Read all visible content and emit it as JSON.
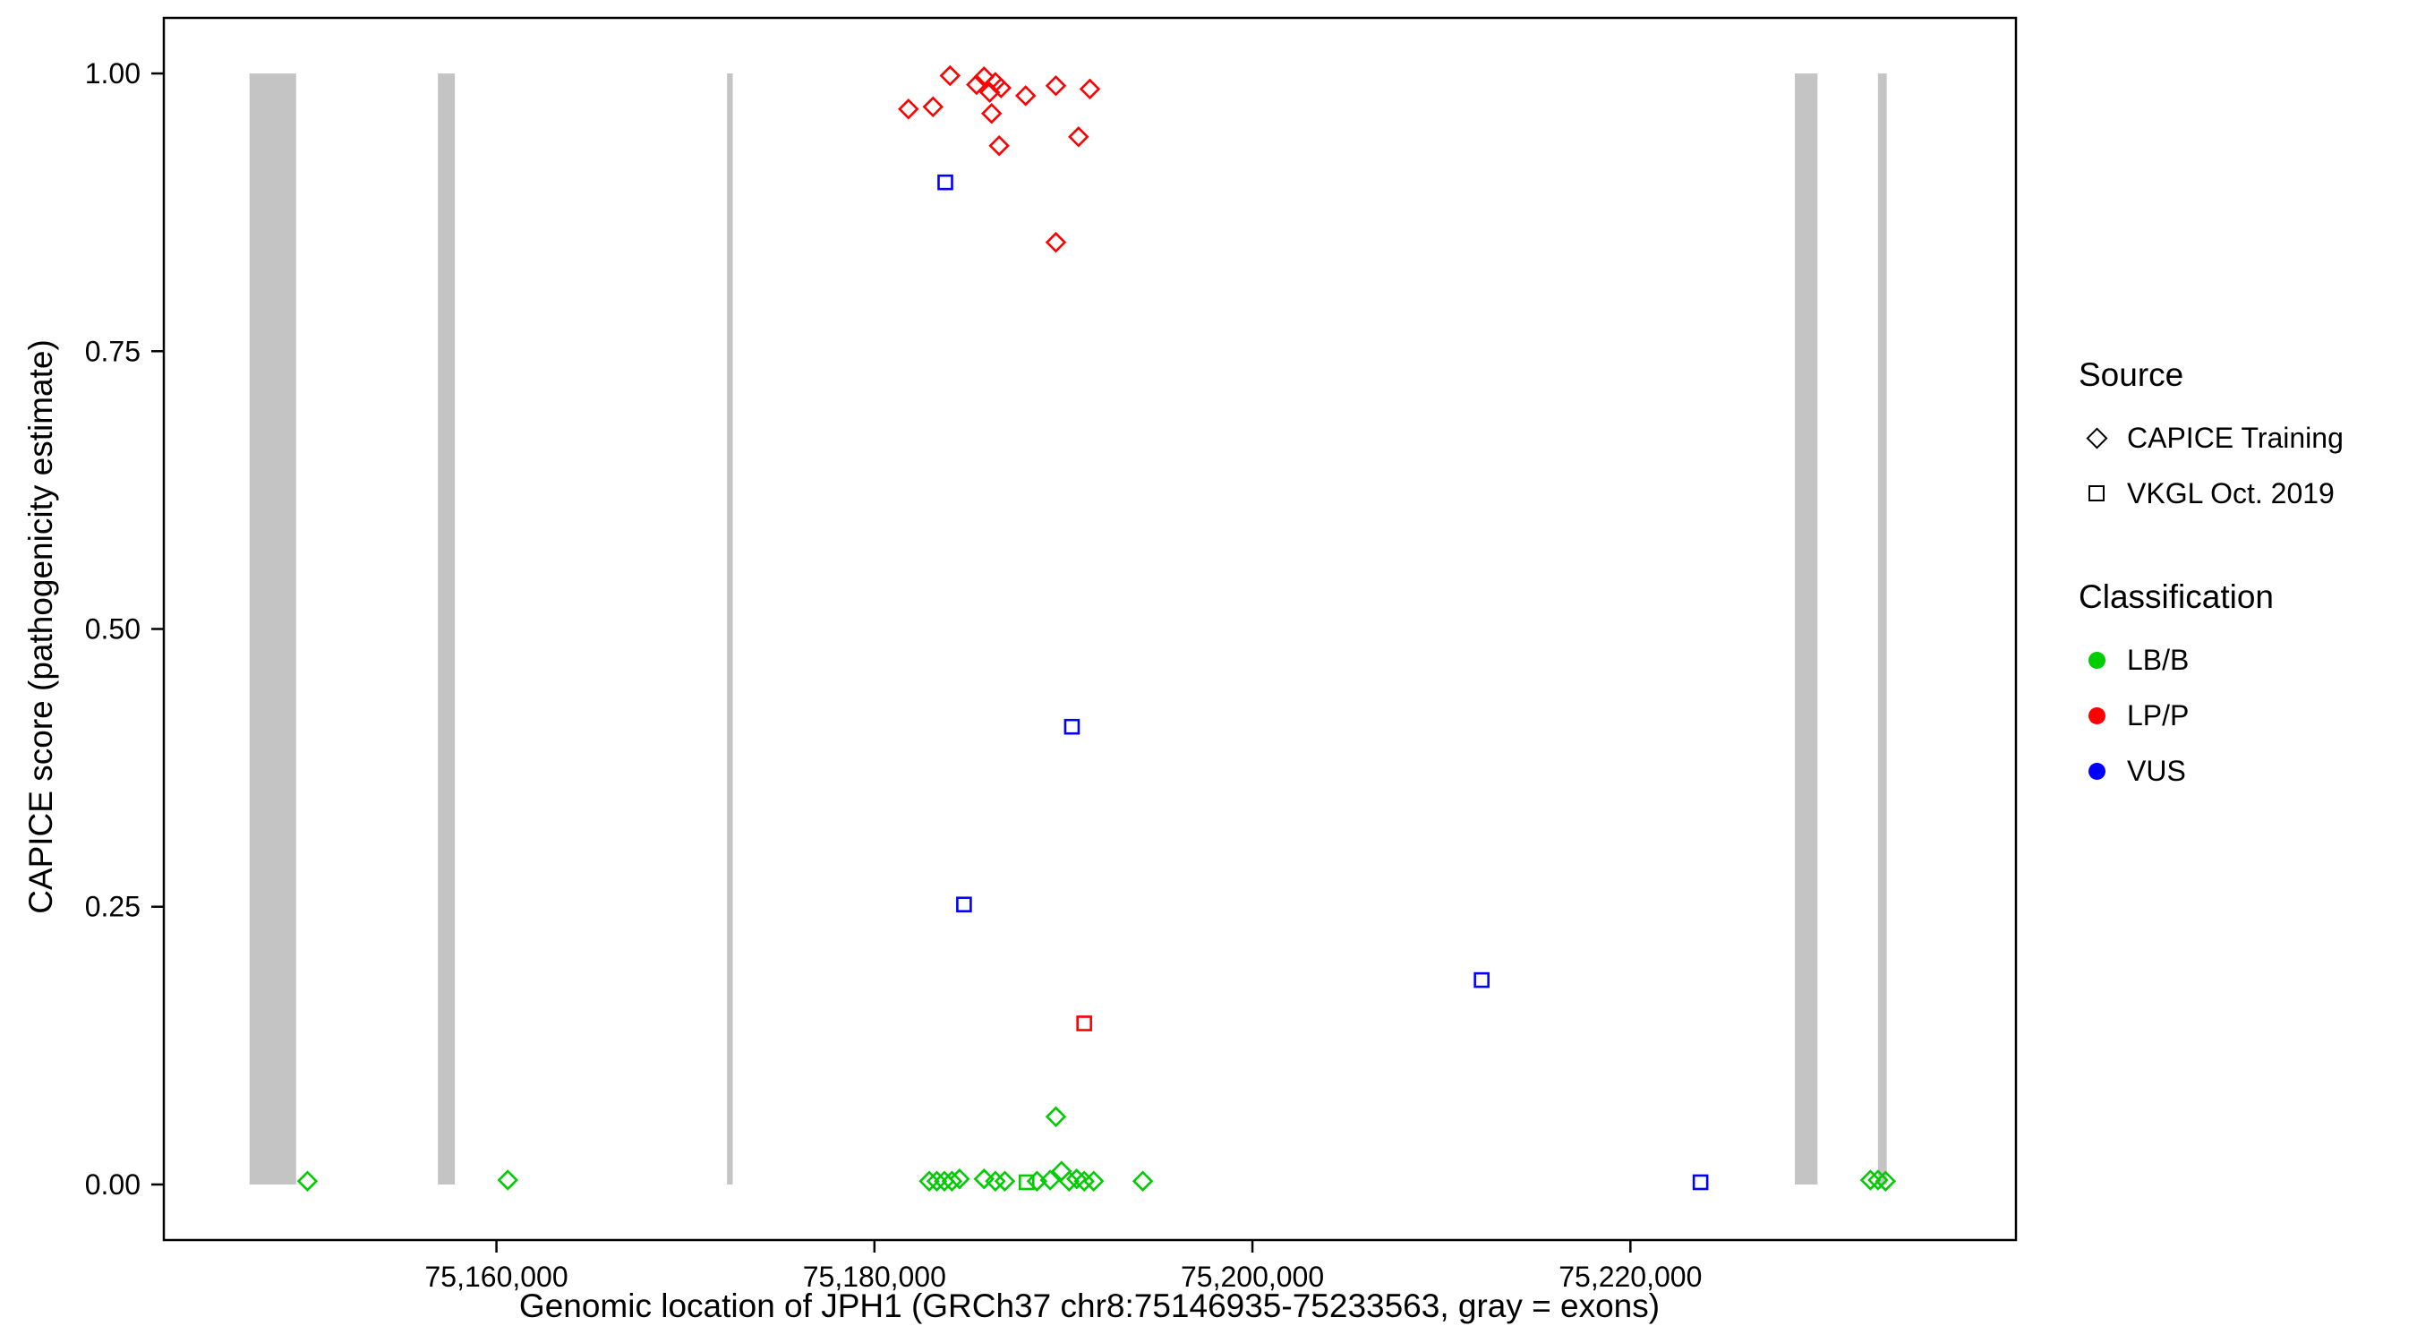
{
  "chart_data": {
    "type": "scatter",
    "title": "",
    "xlabel": "Genomic location of JPH1 (GRCh37 chr8:75146935-75233563, gray = exons)",
    "ylabel": "CAPICE score (pathogenicity estimate)",
    "x_domain": [
      75142400,
      75240400
    ],
    "y_domain": [
      -0.05,
      1.05
    ],
    "x_ticks": [
      {
        "v": 75160000,
        "label": "75,160,000"
      },
      {
        "v": 75180000,
        "label": "75,180,000"
      },
      {
        "v": 75200000,
        "label": "75,200,000"
      },
      {
        "v": 75220000,
        "label": "75,220,000"
      }
    ],
    "y_ticks": [
      {
        "v": 0.0,
        "label": "0.00"
      },
      {
        "v": 0.25,
        "label": "0.25"
      },
      {
        "v": 0.5,
        "label": "0.50"
      },
      {
        "v": 0.75,
        "label": "0.75"
      },
      {
        "v": 1.0,
        "label": "1.00"
      }
    ],
    "grid": false,
    "legend_position": "right",
    "exon_color": "#C4C4C4",
    "exons": [
      [
        75146935,
        75149400
      ],
      [
        75156900,
        75157800
      ],
      [
        75172200,
        75172500
      ],
      [
        75228700,
        75229900
      ],
      [
        75233100,
        75233563
      ]
    ],
    "legend": {
      "source": {
        "title": "Source",
        "items": [
          {
            "label": "CAPICE Training",
            "marker": "diamond"
          },
          {
            "label": "VKGL Oct. 2019",
            "marker": "square"
          }
        ]
      },
      "classification": {
        "title": "Classification",
        "items": [
          {
            "label": "LB/B",
            "color": "#00CC00"
          },
          {
            "label": "LP/P",
            "color": "#FF0000"
          },
          {
            "label": "VUS",
            "color": "#0000FF"
          }
        ]
      }
    },
    "series": [
      {
        "name": "CAPICE Training / LB/B",
        "source": "CAPICE Training",
        "classification": "LB/B",
        "marker": "diamond",
        "color": "#00CC00",
        "points": [
          [
            75150000,
            0.003
          ],
          [
            75160600,
            0.004
          ],
          [
            75182900,
            0.003
          ],
          [
            75183300,
            0.003
          ],
          [
            75183700,
            0.003
          ],
          [
            75184100,
            0.003
          ],
          [
            75184500,
            0.005
          ],
          [
            75185800,
            0.005
          ],
          [
            75186400,
            0.003
          ],
          [
            75186900,
            0.003
          ],
          [
            75188600,
            0.003
          ],
          [
            75189300,
            0.004
          ],
          [
            75189600,
            0.061
          ],
          [
            75189900,
            0.012
          ],
          [
            75190300,
            0.003
          ],
          [
            75190700,
            0.005
          ],
          [
            75191100,
            0.003
          ],
          [
            75191600,
            0.003
          ],
          [
            75194200,
            0.003
          ],
          [
            75232700,
            0.004
          ],
          [
            75233100,
            0.004
          ],
          [
            75233500,
            0.003
          ]
        ]
      },
      {
        "name": "CAPICE Training / LP/P",
        "source": "CAPICE Training",
        "classification": "LP/P",
        "marker": "diamond",
        "color": "#FF0000",
        "points": [
          [
            75181800,
            0.968
          ],
          [
            75183100,
            0.97
          ],
          [
            75184000,
            0.998
          ],
          [
            75185400,
            0.99
          ],
          [
            75185800,
            0.997
          ],
          [
            75186100,
            0.983
          ],
          [
            75186400,
            0.992
          ],
          [
            75186700,
            0.987
          ],
          [
            75186200,
            0.964
          ],
          [
            75186600,
            0.935
          ],
          [
            75188000,
            0.98
          ],
          [
            75189600,
            0.989
          ],
          [
            75191400,
            0.986
          ],
          [
            75190800,
            0.943
          ],
          [
            75189600,
            0.848
          ]
        ]
      },
      {
        "name": "VKGL Oct. 2019 / LB/B",
        "source": "VKGL Oct. 2019",
        "classification": "LB/B",
        "marker": "square",
        "color": "#00CC00",
        "points": [
          [
            75188050,
            0.002
          ]
        ]
      },
      {
        "name": "VKGL Oct. 2019 / LP/P",
        "source": "VKGL Oct. 2019",
        "classification": "LP/P",
        "marker": "square",
        "color": "#FF0000",
        "points": [
          [
            75191100,
            0.145
          ]
        ]
      },
      {
        "name": "VKGL Oct. 2019 / VUS",
        "source": "VKGL Oct. 2019",
        "classification": "VUS",
        "marker": "square",
        "color": "#0000FF",
        "points": [
          [
            75183750,
            0.902
          ],
          [
            75184740,
            0.252
          ],
          [
            75190450,
            0.412
          ],
          [
            75212130,
            0.184
          ],
          [
            75223710,
            0.002
          ]
        ]
      }
    ]
  }
}
